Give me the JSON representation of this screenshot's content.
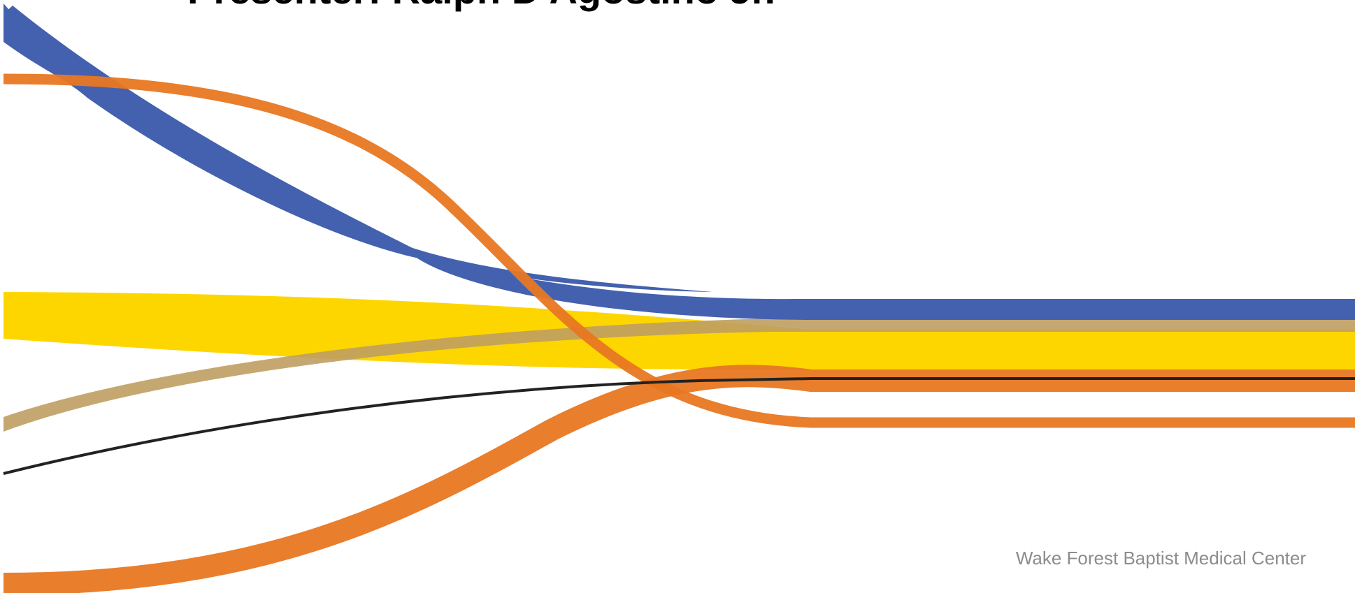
{
  "slide": {
    "title": "Presenter: Ralph D'Agostino Jr.",
    "footer": "Wake Forest Baptist Medical Center"
  },
  "colors": {
    "background": "#ffffff",
    "title": "#000000",
    "footer": "#8c8c8c",
    "ribbon_blue": "#4361ae",
    "ribbon_orange": "#e87722",
    "ribbon_yellow": "#fdd600",
    "ribbon_tan": "#bf9e62",
    "line_black": "#222222"
  }
}
